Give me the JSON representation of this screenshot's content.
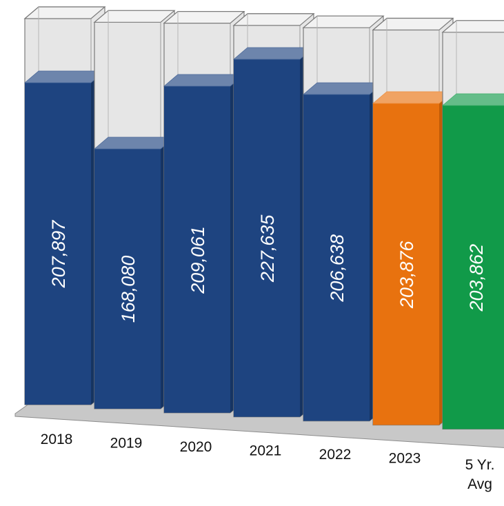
{
  "chart_data": {
    "type": "bar",
    "categories": [
      "2018",
      "2019",
      "2020",
      "2021",
      "2022",
      "2023",
      "5 Yr.\nAvg"
    ],
    "values": [
      207897,
      168080,
      209061,
      227635,
      206638,
      203876,
      203862
    ],
    "data_labels": [
      "207,897",
      "168,080",
      "209,061",
      "227,635",
      "206,638",
      "203,876",
      "203,862"
    ],
    "ylim": [
      0,
      240000
    ],
    "title": "",
    "xlabel": "",
    "ylabel": "",
    "grid": false,
    "legend": "none",
    "style": "3d-cylinder-columns",
    "colors": {
      "default": "#1e4480",
      "default_side": "#163462",
      "current": "#e8720f",
      "current_side": "#c15c08",
      "average": "#119a49",
      "average_side": "#0c7a38",
      "container_fill": "#e6e6e6",
      "container_stroke": "#7a7a7a",
      "floor": "#c8c8c8",
      "floor_stroke": "#8c8c8c"
    },
    "bar_color_keys": [
      "default",
      "default",
      "default",
      "default",
      "default",
      "current",
      "average"
    ]
  }
}
